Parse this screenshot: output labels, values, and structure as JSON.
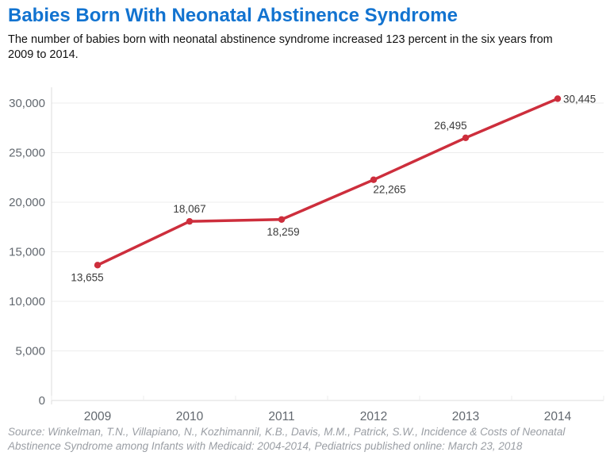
{
  "header": {
    "title": "Babies Born With Neonatal Abstinence Syndrome",
    "subtitle": "The number of babies born with neonatal abstinence syndrome increased 123 percent in the six years from 2009 to 2014."
  },
  "chart_data": {
    "type": "line",
    "title": "Babies Born With Neonatal Abstinence Syndrome",
    "subtitle": "The number of babies born with neonatal abstinence syndrome increased 123 percent in the six years from 2009 to 2014.",
    "categories": [
      "2009",
      "2010",
      "2011",
      "2012",
      "2013",
      "2014"
    ],
    "series": [
      {
        "name": "Babies born with neonatal abstinence syndrome",
        "values": [
          13655,
          18067,
          18259,
          22265,
          26495,
          30445
        ],
        "labels": [
          "13,655",
          "18,067",
          "18,259",
          "22,265",
          "26,495",
          "30,445"
        ]
      }
    ],
    "xlabel": "",
    "ylabel": "",
    "ylim": [
      0,
      30000
    ],
    "yticks": [
      0,
      5000,
      10000,
      15000,
      20000,
      25000,
      30000
    ],
    "ytick_labels": [
      "0",
      "5,000",
      "10,000",
      "15,000",
      "20,000",
      "25,000",
      "30,000"
    ],
    "grid": true,
    "legend": "none"
  },
  "source": {
    "text": "Source: Winkelman, T.N., Villapiano, N., Kozhimannil, K.B., Davis, M.M., Patrick, S.W., Incidence & Costs of Neonatal Abstinence Syndrome among Infants with Medicaid: 2004-2014, Pediatrics published online: March 23, 2018"
  },
  "colors": {
    "title_blue": "#1273d0",
    "line_red": "#cd2e3c",
    "gridline": "#ececec",
    "axis_line": "#dcdcdc",
    "tick_label": "#62686f",
    "data_label": "#3a3a3a",
    "subtitle_text": "#111111",
    "source_text": "#9a9ea4"
  }
}
